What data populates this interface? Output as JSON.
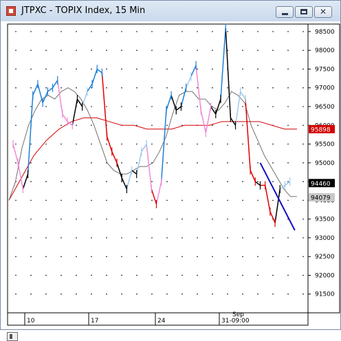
{
  "window": {
    "title": "JTPXC - TOPIX Index, 15 Min",
    "controls": {
      "minimize": "minimize",
      "maximize": "maximize",
      "close": "✕"
    }
  },
  "chart_data": {
    "type": "line",
    "instrument": "JTPXC",
    "interval": "15 Min",
    "grid": true,
    "ylim": [
      91000,
      98700
    ],
    "y_ticks": [
      91500,
      92000,
      92500,
      93000,
      93500,
      94000,
      94500,
      95000,
      95500,
      96000,
      96500,
      97000,
      97500,
      98000,
      98500
    ],
    "x_tick_labels": [
      "10",
      "17",
      "24",
      "31-09:00"
    ],
    "x_upper_label": "Sep",
    "markers": [
      {
        "value": "95898",
        "color": "#d40000",
        "text_color": "#ffffff"
      },
      {
        "value": "94460",
        "color": "#000000",
        "text_color": "#ffffff"
      },
      {
        "value": "94079",
        "color": "#c8c8c8",
        "text_color": "#000000"
      }
    ],
    "price_series": {
      "colors": {
        "up_strong": "#1a7fd8",
        "up_weak": "#9ec8ec",
        "down_strong": "#e00000",
        "down_weak": "#f08cd8",
        "neutral": "#000000"
      },
      "points": [
        [
          0,
          95500,
          "down_weak"
        ],
        [
          1,
          95000,
          "down_weak"
        ],
        [
          2,
          94300,
          "down_weak"
        ],
        [
          3,
          94700,
          "neutral"
        ],
        [
          4,
          96800,
          "up_strong"
        ],
        [
          5,
          97100,
          "up_strong"
        ],
        [
          6,
          96600,
          "up_strong"
        ],
        [
          7,
          96900,
          "up_strong"
        ],
        [
          8,
          97000,
          "up_strong"
        ],
        [
          9,
          97200,
          "up_strong"
        ],
        [
          10,
          96300,
          "down_weak"
        ],
        [
          11,
          96100,
          "down_weak"
        ],
        [
          12,
          96000,
          "down_weak"
        ],
        [
          13,
          96700,
          "neutral"
        ],
        [
          14,
          96500,
          "neutral"
        ],
        [
          15,
          96900,
          "up_weak"
        ],
        [
          16,
          97100,
          "up_strong"
        ],
        [
          17,
          97500,
          "up_strong"
        ],
        [
          18,
          97400,
          "up_strong"
        ],
        [
          19,
          95700,
          "down_strong"
        ],
        [
          20,
          95300,
          "down_strong"
        ],
        [
          21,
          95000,
          "down_strong"
        ],
        [
          22,
          94600,
          "neutral"
        ],
        [
          23,
          94300,
          "neutral"
        ],
        [
          24,
          94800,
          "up_weak"
        ],
        [
          25,
          94700,
          "neutral"
        ],
        [
          26,
          95300,
          "up_weak"
        ],
        [
          27,
          95500,
          "up_weak"
        ],
        [
          28,
          94300,
          "down_weak"
        ],
        [
          29,
          93900,
          "down_strong"
        ],
        [
          30,
          94500,
          "down_weak"
        ],
        [
          31,
          96400,
          "up_strong"
        ],
        [
          32,
          96800,
          "up_strong"
        ],
        [
          33,
          96400,
          "neutral"
        ],
        [
          34,
          96500,
          "neutral"
        ],
        [
          35,
          97000,
          "up_strong"
        ],
        [
          36,
          97300,
          "up_weak"
        ],
        [
          37,
          97600,
          "up_strong"
        ],
        [
          38,
          96400,
          "down_weak"
        ],
        [
          39,
          95800,
          "down_weak"
        ],
        [
          40,
          96500,
          "down_weak"
        ],
        [
          41,
          96300,
          "neutral"
        ],
        [
          42,
          96700,
          "neutral"
        ],
        [
          43,
          98600,
          "up_strong"
        ],
        [
          44,
          96200,
          "neutral"
        ],
        [
          45,
          96000,
          "neutral"
        ],
        [
          46,
          96900,
          "up_weak"
        ],
        [
          47,
          96700,
          "up_weak"
        ],
        [
          48,
          94800,
          "down_strong"
        ],
        [
          49,
          94500,
          "down_strong"
        ],
        [
          50,
          94400,
          "neutral"
        ],
        [
          51,
          94400,
          "down_strong"
        ],
        [
          52,
          93700,
          "down_strong"
        ],
        [
          53,
          93400,
          "down_strong"
        ],
        [
          54,
          94300,
          "neutral"
        ],
        [
          55,
          94400,
          "up_weak"
        ],
        [
          56,
          94500,
          "up_weak"
        ]
      ]
    },
    "ma_short": {
      "color": "#707070",
      "values": [
        94000,
        94500,
        95400,
        96000,
        96400,
        96700,
        96800,
        96700,
        96900,
        97000,
        96900,
        96700,
        96400,
        96000,
        95500,
        95000,
        94800,
        94700,
        94700,
        94800,
        94900,
        94900,
        95000,
        95300,
        95700,
        96300,
        96800,
        96900,
        96900,
        96700,
        96700,
        96500,
        96400,
        96600,
        96900,
        96800,
        96600,
        96000,
        95600,
        95200,
        94900,
        94600,
        94300,
        94100,
        94100
      ]
    },
    "ma_long": {
      "color": "#d40000",
      "values": [
        94000,
        94600,
        95200,
        95600,
        95900,
        96100,
        96200,
        96200,
        96100,
        96000,
        96000,
        95900,
        95900,
        95900,
        96000,
        96000,
        96000,
        96100,
        96100,
        96100,
        96100,
        96000,
        95900,
        95900
      ]
    },
    "trendline": {
      "color": "#1010c0",
      "from": [
        50,
        95000
      ],
      "to": [
        57,
        93200
      ]
    }
  },
  "scrollbar": {
    "label": "scroll"
  }
}
